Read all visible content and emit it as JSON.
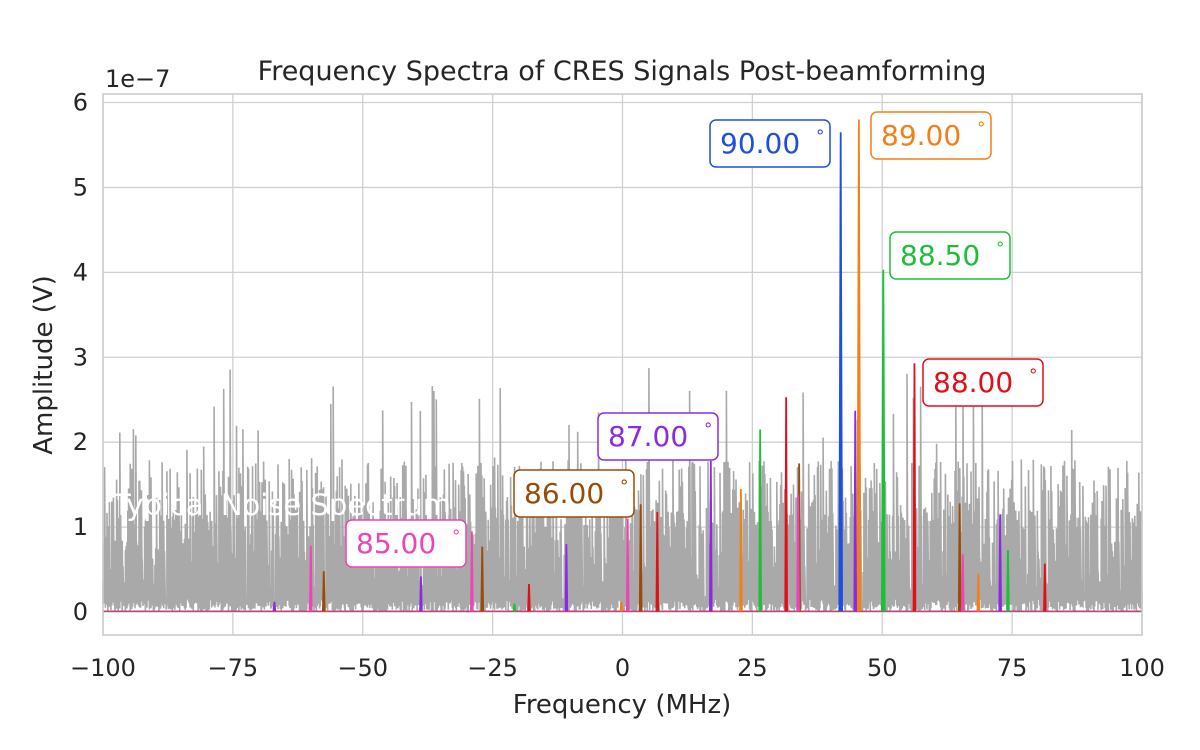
{
  "chart_data": {
    "type": "line",
    "title": "Frequency Spectra of CRES Signals Post-beamforming",
    "xlabel": "Frequency (MHz)",
    "ylabel": "Amplitude (V)",
    "y_scale_label": "1e−7",
    "xlim": [
      -100,
      100
    ],
    "ylim": [
      -0.27,
      6.1
    ],
    "xticks": [
      -100,
      -75,
      -50,
      -25,
      0,
      25,
      50,
      75,
      100
    ],
    "xtick_labels": [
      "−100",
      "−75",
      "−50",
      "−25",
      "0",
      "25",
      "50",
      "75",
      "100"
    ],
    "yticks": [
      0,
      1,
      2,
      3,
      4,
      5,
      6
    ],
    "ytick_labels": [
      "0",
      "1",
      "2",
      "3",
      "4",
      "5",
      "6"
    ],
    "grid": true,
    "noise": {
      "name": "Typical Noise Spectrum",
      "color": "#a9a9a9",
      "typical_max": 1.8,
      "occasional_max": 2.9
    },
    "series": [
      {
        "name": "90.00°",
        "color": "#1f4fe0",
        "label": "90.00",
        "peaks": [
          {
            "x": 42.0,
            "y": 5.65
          },
          {
            "x": 45.0,
            "y": 0.04
          }
        ]
      },
      {
        "name": "89.00°",
        "color": "#f47f16",
        "label": "89.00",
        "peaks": [
          {
            "x": 45.5,
            "y": 5.8
          },
          {
            "x": 22.8,
            "y": 1.45
          },
          {
            "x": 68.5,
            "y": 0.45
          },
          {
            "x": -0.2,
            "y": 0.12
          }
        ]
      },
      {
        "name": "88.50°",
        "color": "#1dbe3a",
        "label": "88.50",
        "peaks": [
          {
            "x": 50.2,
            "y": 4.03
          },
          {
            "x": 26.5,
            "y": 2.15
          },
          {
            "x": 74.2,
            "y": 0.73
          },
          {
            "x": -20.8,
            "y": 0.1
          }
        ]
      },
      {
        "name": "88.00°",
        "color": "#e0101a",
        "label": "88.00",
        "peaks": [
          {
            "x": 56.2,
            "y": 2.93
          },
          {
            "x": 31.5,
            "y": 2.53
          },
          {
            "x": 6.7,
            "y": 1.18
          },
          {
            "x": 81.3,
            "y": 0.57
          },
          {
            "x": -18.0,
            "y": 0.33
          }
        ]
      },
      {
        "name": "87.00°",
        "color": "#8a2be2",
        "label": "87.00",
        "peaks": [
          {
            "x": 44.8,
            "y": 2.37
          },
          {
            "x": 17.0,
            "y": 1.78
          },
          {
            "x": 72.7,
            "y": 1.15
          },
          {
            "x": -10.8,
            "y": 0.8
          },
          {
            "x": -38.8,
            "y": 0.42
          },
          {
            "x": -67.0,
            "y": 0.12
          }
        ]
      },
      {
        "name": "86.00°",
        "color": "#9a4b08",
        "label": "86.00",
        "peaks": [
          {
            "x": 3.5,
            "y": 1.27
          },
          {
            "x": 34.0,
            "y": 1.75
          },
          {
            "x": 64.9,
            "y": 1.28
          },
          {
            "x": -27.0,
            "y": 0.77
          },
          {
            "x": -57.5,
            "y": 0.48
          }
        ]
      },
      {
        "name": "85.00°",
        "color": "#f043b4",
        "label": "85.00",
        "peaks": [
          {
            "x": 33.8,
            "y": 1.38
          },
          {
            "x": 1.0,
            "y": 1.1
          },
          {
            "x": -29.0,
            "y": 0.95
          },
          {
            "x": -60.0,
            "y": 0.78
          },
          {
            "x": 65.5,
            "y": 0.68
          }
        ]
      }
    ],
    "annotations": [
      {
        "text": "90.00",
        "degree": "°",
        "series": "90.00°"
      },
      {
        "text": "89.00",
        "degree": "°",
        "series": "89.00°"
      },
      {
        "text": "88.50",
        "degree": "°",
        "series": "88.50°"
      },
      {
        "text": "88.00",
        "degree": "°",
        "series": "88.00°"
      },
      {
        "text": "87.00",
        "degree": "°",
        "series": "87.00°"
      },
      {
        "text": "86.00",
        "degree": "°",
        "series": "86.00°"
      },
      {
        "text": "85.00",
        "degree": "°",
        "series": "85.00°"
      }
    ]
  }
}
